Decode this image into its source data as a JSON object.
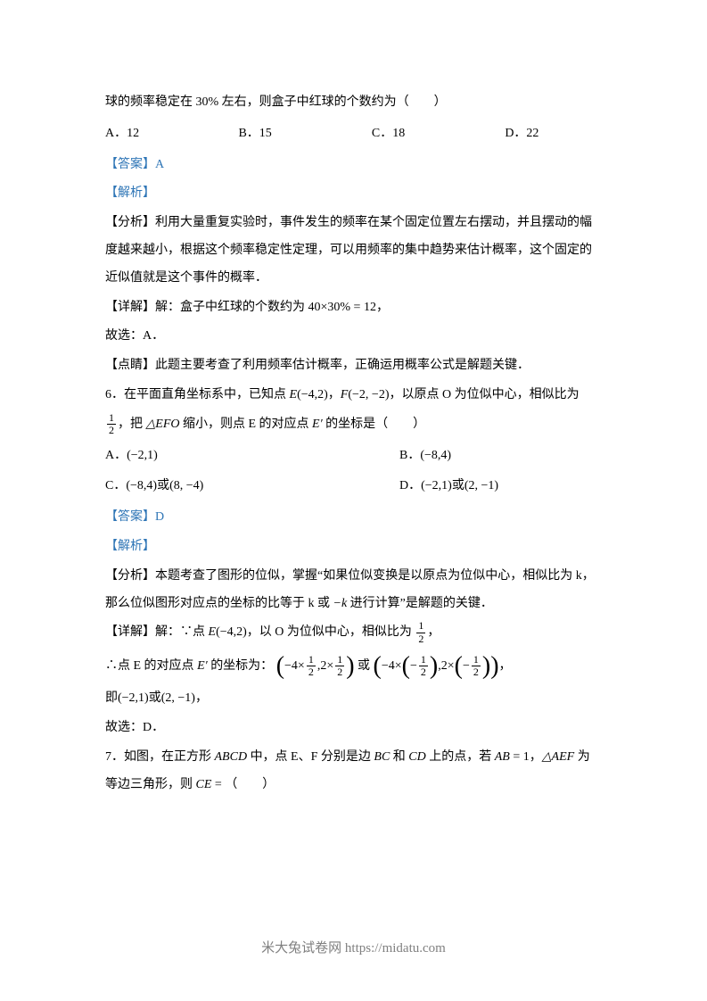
{
  "q5_continuation": "球的频率稳定在 30% 左右，则盒子中红球的个数约为（　　）",
  "q5_options": {
    "a": "A．12",
    "b": "B．15",
    "c": "C．18",
    "d": "D．22"
  },
  "q5_answer": "【答案】A",
  "q5_analysis_label": "【解析】",
  "q5_analysis_p1": "【分析】利用大量重复实验时，事件发生的频率在某个固定位置左右摆动，并且摆动的幅度越来越小，根据这个频率稳定性定理，可以用频率的集中趋势来估计概率，这个固定的近似值就是这个事件的概率．",
  "q5_detail": "【详解】解：盒子中红球的个数约为 40×30% = 12，",
  "q5_conclusion": "故选：A．",
  "q5_point": "【点睛】此题主要考查了利用频率估计概率，正确运用概率公式是解题关键．",
  "q6_stem_pre": "6．在平面直角坐标系中，已知点 ",
  "q6_E": "E",
  "q6_Ecoord": "(−4,2)",
  "q6_comma1": "，",
  "q6_F": "F",
  "q6_Fcoord": "(−2, −2)",
  "q6_stem_post": "，以原点 O 为位似中心，相似比为",
  "q6_stem_line2_pre": "，把 ",
  "q6_EFO": "△EFO",
  "q6_stem_line2_mid": " 缩小，则点 E 的对应点 ",
  "q6_Eprime": "E′",
  "q6_stem_line2_post": " 的坐标是（　　）",
  "q6_options": {
    "a_label": "A．",
    "a_val": "(−2,1)",
    "b_label": "B．",
    "b_val": "(−8,4)",
    "c_label": "C．",
    "c_val1": "(−8,4)",
    "c_or": "或",
    "c_val2": "(8, −4)",
    "d_label": "D．",
    "d_val1": "(−2,1)",
    "d_or": "或",
    "d_val2": "(2, −1)"
  },
  "q6_answer": "【答案】D",
  "q6_analysis_label": "【解析】",
  "q6_analysis_p1_pre": "【分析】本题考查了图形的位似，掌握“如果位似变换是以原点为位似中心，相似比为 k，那么位似图形对应点的坐标的比等于 k 或 ",
  "q6_minus_k": "−k",
  "q6_analysis_p1_post": " 进行计算”是解题的关键．",
  "q6_detail_pre": "【详解】解：∵点 ",
  "q6_detail_E": "E",
  "q6_detail_Ecoord": "(−4,2)",
  "q6_detail_mid": "，以 O 为位似中心，相似比为 ",
  "q6_detail_post": "，",
  "q6_therefore_pre": "∴点 E 的对应点 ",
  "q6_therefore_Eprime": "E′",
  "q6_therefore_mid": " 的坐标为：",
  "q6_expr_or": "或",
  "q6_expr_comma": "，",
  "q6_ie_pre": "即",
  "q6_ie_v1": "(−2,1)",
  "q6_ie_or": "或",
  "q6_ie_v2": "(2, −1)",
  "q6_ie_post": "，",
  "q6_conclusion": "故选：D．",
  "q7_pre": "7．如图，在正方形 ",
  "q7_ABCD": "ABCD",
  "q7_mid1": " 中，点 E、F 分别是边 ",
  "q7_BC": "BC",
  "q7_and": " 和 ",
  "q7_CD": "CD",
  "q7_mid2": " 上的点，若 ",
  "q7_AB": "AB",
  "q7_eq1": " = 1，",
  "q7_AEF": "△AEF",
  "q7_mid3": " 为等边三角形，则 ",
  "q7_CE": "CE",
  "q7_post": " = （　　）",
  "footer": "米大兔试卷网 https://midatu.com",
  "frac_half": {
    "num": "1",
    "den": "2"
  },
  "expr1": {
    "p1": "−4×",
    "p2": ",2×",
    "p3": "−4×",
    "p4": ",2×",
    "m1": "−",
    "m2": "−"
  }
}
